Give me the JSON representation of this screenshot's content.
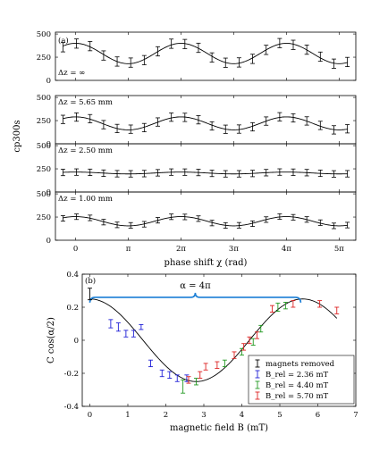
{
  "chart_data": [
    {
      "type": "line",
      "panel_label": "(a)",
      "xlabel": "phase shift χ (rad)",
      "ylabel": "cp300s",
      "xtick_labels": [
        "0",
        "π",
        "2π",
        "3π",
        "4π",
        "5π"
      ],
      "xlim": [
        -1.2,
        16.7
      ],
      "subpanels": [
        {
          "label": "Δz = ∞",
          "ylim": [
            0,
            520
          ],
          "yticks": [
            0,
            250,
            500
          ],
          "amplitude": 110,
          "offset": 290,
          "error": 50
        },
        {
          "label": "Δz = 5.65 mm",
          "ylim": [
            0,
            520
          ],
          "yticks": [
            0,
            250,
            500
          ],
          "amplitude": 70,
          "offset": 220,
          "error": 45
        },
        {
          "label": "Δz = 2.50 mm",
          "ylim": [
            0,
            520
          ],
          "yticks": [
            0,
            250,
            500
          ],
          "amplitude": 10,
          "offset": 205,
          "error": 35
        },
        {
          "label": "Δz = 1.00 mm",
          "ylim": [
            0,
            520
          ],
          "yticks": [
            0,
            250,
            500
          ],
          "amplitude": 50,
          "offset": 205,
          "error": 30
        }
      ]
    },
    {
      "type": "scatter",
      "panel_label": "(b)",
      "xlabel": "magnetic field B (mT)",
      "ylabel": "C cos(α/2)",
      "xlim": [
        -0.2,
        7
      ],
      "ylim": [
        -0.4,
        0.4
      ],
      "xticks": [
        0,
        1,
        2,
        3,
        4,
        5,
        6,
        7
      ],
      "yticks": [
        -0.4,
        -0.2,
        0,
        0.2,
        0.4
      ],
      "annotation": "α = 4π",
      "bracket": {
        "x_start": 0,
        "x_end": 5.55,
        "y": 0.26
      },
      "series": [
        {
          "name": "magnets removed",
          "color": "#000000",
          "points": [
            [
              0,
              0.28,
              0.035
            ]
          ]
        },
        {
          "name": "B_rel = 2.36 mT",
          "color": "#1f1fd6",
          "points": [
            [
              0.55,
              0.1,
              0.025
            ],
            [
              0.75,
              0.08,
              0.025
            ],
            [
              0.95,
              0.04,
              0.02
            ],
            [
              1.15,
              0.04,
              0.02
            ],
            [
              1.35,
              0.08,
              0.015
            ],
            [
              1.6,
              -0.14,
              0.02
            ],
            [
              1.9,
              -0.2,
              0.02
            ],
            [
              2.1,
              -0.21,
              0.02
            ],
            [
              2.3,
              -0.23,
              0.02
            ],
            [
              2.55,
              -0.23,
              0.02
            ]
          ]
        },
        {
          "name": "B_rel = 4.40 mT",
          "color": "#229922",
          "points": [
            [
              2.45,
              -0.28,
              0.04
            ],
            [
              2.8,
              -0.25,
              0.02
            ],
            [
              3.55,
              -0.14,
              0.02
            ],
            [
              4.0,
              -0.07,
              0.02
            ],
            [
              4.3,
              -0.01,
              0.02
            ],
            [
              4.5,
              0.07,
              0.02
            ],
            [
              4.95,
              0.2,
              0.025
            ],
            [
              5.15,
              0.21,
              0.02
            ]
          ]
        },
        {
          "name": "B_rel = 5.70 mT",
          "color": "#dd2222",
          "points": [
            [
              2.6,
              -0.24,
              0.02
            ],
            [
              2.9,
              -0.21,
              0.02
            ],
            [
              3.05,
              -0.16,
              0.02
            ],
            [
              3.35,
              -0.15,
              0.02
            ],
            [
              3.8,
              -0.09,
              0.02
            ],
            [
              4.05,
              -0.04,
              0.02
            ],
            [
              4.2,
              0.0,
              0.02
            ],
            [
              4.4,
              0.03,
              0.02
            ],
            [
              4.8,
              0.19,
              0.02
            ],
            [
              5.35,
              0.22,
              0.02
            ],
            [
              6.05,
              0.22,
              0.02
            ],
            [
              6.5,
              0.18,
              0.02
            ]
          ]
        }
      ],
      "fit_curve": "C cos(k B)",
      "legend_position": "bottom-right"
    }
  ]
}
